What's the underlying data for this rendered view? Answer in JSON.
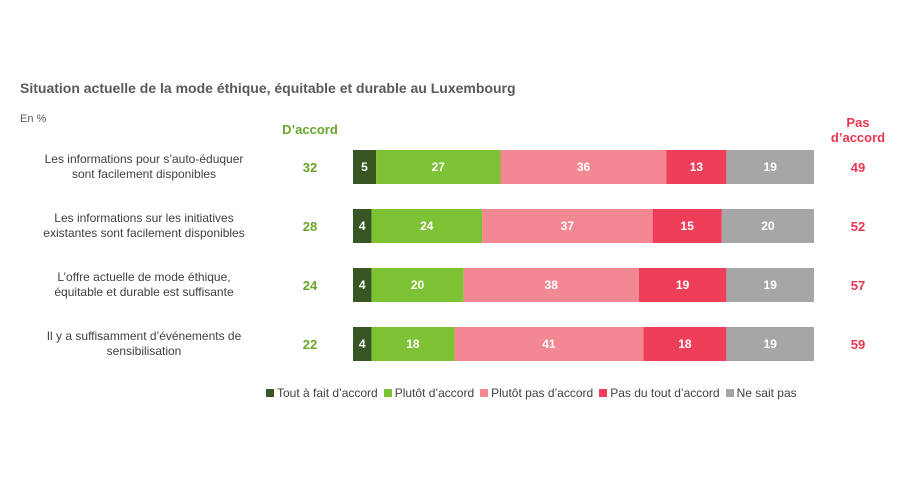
{
  "chart_data": {
    "type": "bar",
    "orientation": "horizontal",
    "stacked": true,
    "title": "Situation actuelle de la mode éthique, équitable et durable au Luxembourg",
    "unit": "En %",
    "agree_header": "D’accord",
    "disagree_header_line1": "Pas",
    "disagree_header_line2": "d’accord",
    "categories": [
      [
        "Les informations pour s’auto-éduquer",
        "sont facilement disponibles"
      ],
      [
        "Les informations sur les initiatives",
        "existantes sont facilement disponibles"
      ],
      [
        "L’offre actuelle de mode éthique,",
        "équitable et durable est suffisante"
      ],
      [
        "Il y a suffisamment d’événements de",
        "sensibilisation"
      ]
    ],
    "series": [
      {
        "name": "Tout à fait d’accord",
        "color": "#375623",
        "values": [
          5,
          4,
          4,
          4
        ]
      },
      {
        "name": "Plutôt d’accord",
        "color": "#7DC234",
        "values": [
          27,
          24,
          20,
          18
        ]
      },
      {
        "name": "Plutôt pas d’accord",
        "color": "#F28892",
        "values": [
          36,
          37,
          38,
          41
        ]
      },
      {
        "name": "Pas du tout d’accord",
        "color": "#EF3E5A",
        "values": [
          13,
          15,
          19,
          18
        ]
      },
      {
        "name": "Ne sait pas",
        "color": "#A6A6A6",
        "values": [
          19,
          20,
          19,
          19
        ]
      }
    ],
    "agree_totals": [
      32,
      28,
      24,
      22
    ],
    "disagree_totals": [
      49,
      52,
      57,
      59
    ],
    "agree_color": "#6AA52B",
    "disagree_color": "#E8364F",
    "legend_position": "bottom"
  }
}
